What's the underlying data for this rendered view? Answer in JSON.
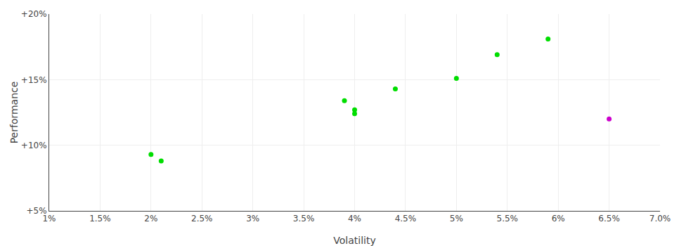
{
  "chart_data": {
    "type": "scatter",
    "xlabel": "Volatility",
    "ylabel": "Performance",
    "xlim": [
      0.01,
      0.07
    ],
    "ylim": [
      0.05,
      0.2
    ],
    "xticks": [
      {
        "value": 0.01,
        "label": "1%"
      },
      {
        "value": 0.015,
        "label": "1.5%"
      },
      {
        "value": 0.02,
        "label": "2%"
      },
      {
        "value": 0.025,
        "label": "2.5%"
      },
      {
        "value": 0.03,
        "label": "3%"
      },
      {
        "value": 0.035,
        "label": "3.5%"
      },
      {
        "value": 0.04,
        "label": "4%"
      },
      {
        "value": 0.045,
        "label": "4.5%"
      },
      {
        "value": 0.05,
        "label": "5%"
      },
      {
        "value": 0.055,
        "label": "5.5%"
      },
      {
        "value": 0.06,
        "label": "6%"
      },
      {
        "value": 0.065,
        "label": "6.5%"
      },
      {
        "value": 0.07,
        "label": "7.0%"
      }
    ],
    "yticks": [
      {
        "value": 0.05,
        "label": "+5%"
      },
      {
        "value": 0.1,
        "label": "+10%"
      },
      {
        "value": 0.15,
        "label": "+15%"
      },
      {
        "value": 0.2,
        "label": "+20%"
      }
    ],
    "grid": true,
    "series": [
      {
        "color": "#00dd00",
        "x": [
          0.02,
          0.021,
          0.039,
          0.04,
          0.04,
          0.044,
          0.05,
          0.054,
          0.059
        ],
        "values": [
          0.093,
          0.088,
          0.134,
          0.127,
          0.124,
          0.143,
          0.151,
          0.169,
          0.181
        ]
      },
      {
        "color": "#cc00cc",
        "x": [
          0.065
        ],
        "values": [
          0.12
        ]
      }
    ]
  }
}
